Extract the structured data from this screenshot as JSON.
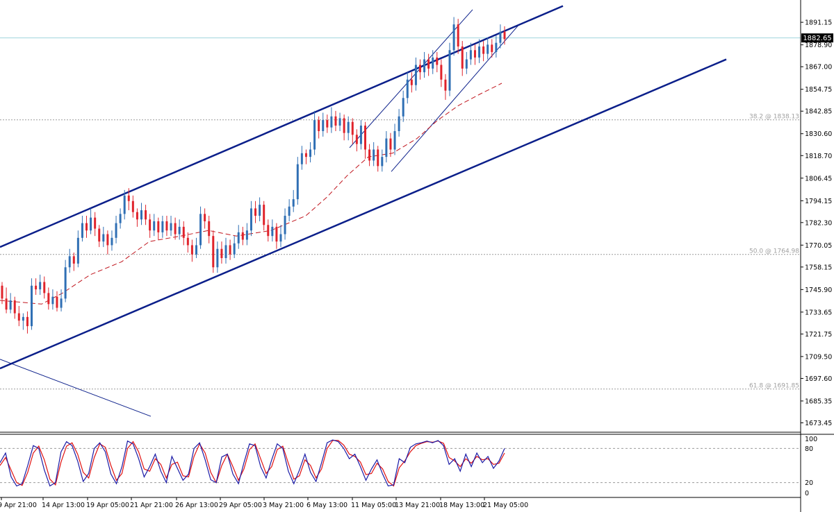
{
  "chart_data": {
    "type": "candlestick",
    "current_price": "1882.65",
    "price_axis": {
      "ylim": [
        1671,
        1901
      ],
      "ticks": [
        1891.15,
        1878.9,
        1867.0,
        1854.75,
        1842.85,
        1830.6,
        1818.7,
        1806.45,
        1794.15,
        1782.3,
        1770.05,
        1758.15,
        1745.9,
        1733.65,
        1721.75,
        1709.5,
        1697.6,
        1685.35,
        1673.45
      ],
      "tick_labels": [
        "1891.15",
        "1878.90",
        "1867.00",
        "1854.75",
        "1842.85",
        "1830.60",
        "1818.70",
        "1806.45",
        "1794.15",
        "1782.30",
        "1770.05",
        "1758.15",
        "1745.90",
        "1733.65",
        "1721.75",
        "1709.50",
        "1697.60",
        "1685.35",
        "1673.45"
      ]
    },
    "time_axis": {
      "labels": [
        "9 Apr 21:00",
        "14 Apr 13:00",
        "19 Apr 05:00",
        "21 Apr 21:00",
        "26 Apr 13:00",
        "29 Apr 05:00",
        "3 May 21:00",
        "6 May 13:00",
        "11 May 05:00",
        "13 May 21:00",
        "18 May 13:00",
        "21 May 05:00"
      ]
    },
    "fib_levels": [
      {
        "label": "38.2 @ 1838.13",
        "value": 1838.13
      },
      {
        "label": "50.0 @ 1764.98",
        "value": 1764.98
      },
      {
        "label": "61.8 @ 1691.85",
        "value": 1691.85
      }
    ],
    "channel_lines": [
      {
        "name": "upper-channel",
        "points": [
          [
            0,
            1769
          ],
          [
            810,
            1900
          ]
        ],
        "width": 2.5
      },
      {
        "name": "lower-channel",
        "points": [
          [
            0,
            1703
          ],
          [
            1045,
            1871
          ]
        ],
        "width": 2.5
      },
      {
        "name": "descending-line",
        "points": [
          [
            0,
            1708
          ],
          [
            217,
            1677
          ]
        ],
        "width": 1
      },
      {
        "name": "wedge-upper",
        "points": [
          [
            503,
            1823
          ],
          [
            680,
            1898
          ]
        ],
        "width": 1
      },
      {
        "name": "wedge-lower",
        "points": [
          [
            563,
            1810
          ],
          [
            747,
            1890
          ]
        ],
        "width": 1
      }
    ],
    "moving_average": [
      [
        0,
        1740
      ],
      [
        60,
        1738
      ],
      [
        90,
        1744
      ],
      [
        130,
        1754
      ],
      [
        175,
        1761
      ],
      [
        215,
        1772
      ],
      [
        260,
        1775
      ],
      [
        300,
        1778
      ],
      [
        340,
        1775
      ],
      [
        390,
        1778
      ],
      [
        440,
        1786
      ],
      [
        470,
        1796
      ],
      [
        500,
        1808
      ],
      [
        530,
        1818
      ],
      [
        565,
        1820
      ],
      [
        600,
        1828
      ],
      [
        630,
        1838
      ],
      [
        660,
        1846
      ],
      [
        690,
        1852
      ],
      [
        722,
        1858
      ]
    ],
    "candles": [
      [
        1748,
        1741,
        1750,
        1738
      ],
      [
        1741,
        1735,
        1747,
        1733
      ],
      [
        1735,
        1740,
        1744,
        1733
      ],
      [
        1740,
        1733,
        1742,
        1730
      ],
      [
        1733,
        1729,
        1737,
        1726
      ],
      [
        1729,
        1731,
        1733,
        1724
      ],
      [
        1731,
        1726,
        1734,
        1722
      ],
      [
        1726,
        1748,
        1752,
        1724
      ],
      [
        1748,
        1746,
        1752,
        1743
      ],
      [
        1746,
        1750,
        1754,
        1743
      ],
      [
        1750,
        1744,
        1753,
        1741
      ],
      [
        1744,
        1738,
        1747,
        1735
      ],
      [
        1738,
        1742,
        1746,
        1735
      ],
      [
        1742,
        1736,
        1745,
        1734
      ],
      [
        1736,
        1741,
        1746,
        1734
      ],
      [
        1741,
        1758,
        1762,
        1739
      ],
      [
        1758,
        1764,
        1768,
        1755
      ],
      [
        1764,
        1760,
        1766,
        1756
      ],
      [
        1760,
        1774,
        1778,
        1758
      ],
      [
        1774,
        1782,
        1786,
        1772
      ],
      [
        1782,
        1778,
        1786,
        1774
      ],
      [
        1778,
        1785,
        1790,
        1776
      ],
      [
        1785,
        1779,
        1788,
        1775
      ],
      [
        1779,
        1772,
        1781,
        1769
      ],
      [
        1772,
        1776,
        1780,
        1769
      ],
      [
        1776,
        1770,
        1778,
        1765
      ],
      [
        1770,
        1774,
        1778,
        1767
      ],
      [
        1774,
        1782,
        1786,
        1771
      ],
      [
        1782,
        1787,
        1790,
        1779
      ],
      [
        1787,
        1797,
        1800,
        1784
      ],
      [
        1797,
        1794,
        1801,
        1789
      ],
      [
        1794,
        1788,
        1797,
        1785
      ],
      [
        1788,
        1784,
        1790,
        1780
      ],
      [
        1784,
        1789,
        1793,
        1781
      ],
      [
        1789,
        1784,
        1792,
        1781
      ],
      [
        1784,
        1778,
        1787,
        1774
      ],
      [
        1778,
        1783,
        1787,
        1775
      ],
      [
        1783,
        1777,
        1785,
        1773
      ],
      [
        1777,
        1783,
        1786,
        1774
      ],
      [
        1783,
        1778,
        1786,
        1775
      ],
      [
        1778,
        1782,
        1786,
        1775
      ],
      [
        1782,
        1776,
        1785,
        1773
      ],
      [
        1776,
        1780,
        1784,
        1773
      ],
      [
        1780,
        1774,
        1783,
        1770
      ],
      [
        1774,
        1770,
        1777,
        1766
      ],
      [
        1770,
        1765,
        1773,
        1761
      ],
      [
        1765,
        1770,
        1774,
        1763
      ],
      [
        1770,
        1787,
        1791,
        1768
      ],
      [
        1787,
        1783,
        1790,
        1779
      ],
      [
        1783,
        1775,
        1786,
        1771
      ],
      [
        1775,
        1758,
        1778,
        1755
      ],
      [
        1758,
        1768,
        1772,
        1755
      ],
      [
        1768,
        1763,
        1772,
        1760
      ],
      [
        1763,
        1770,
        1774,
        1760
      ],
      [
        1770,
        1765,
        1773,
        1762
      ],
      [
        1765,
        1771,
        1775,
        1763
      ],
      [
        1771,
        1777,
        1781,
        1768
      ],
      [
        1777,
        1773,
        1780,
        1770
      ],
      [
        1773,
        1778,
        1782,
        1770
      ],
      [
        1778,
        1790,
        1794,
        1775
      ],
      [
        1790,
        1786,
        1794,
        1782
      ],
      [
        1786,
        1792,
        1796,
        1783
      ],
      [
        1792,
        1781,
        1794,
        1778
      ],
      [
        1781,
        1775,
        1784,
        1772
      ],
      [
        1775,
        1780,
        1784,
        1772
      ],
      [
        1780,
        1772,
        1782,
        1768
      ],
      [
        1772,
        1776,
        1781,
        1769
      ],
      [
        1776,
        1786,
        1790,
        1773
      ],
      [
        1786,
        1791,
        1795,
        1783
      ],
      [
        1791,
        1795,
        1800,
        1788
      ],
      [
        1795,
        1814,
        1818,
        1792
      ],
      [
        1814,
        1820,
        1824,
        1811
      ],
      [
        1820,
        1818,
        1822,
        1814
      ],
      [
        1818,
        1822,
        1826,
        1815
      ],
      [
        1822,
        1838,
        1843,
        1819
      ],
      [
        1838,
        1832,
        1840,
        1828
      ],
      [
        1832,
        1838,
        1842,
        1829
      ],
      [
        1838,
        1834,
        1841,
        1831
      ],
      [
        1834,
        1840,
        1845,
        1831
      ],
      [
        1840,
        1835,
        1843,
        1832
      ],
      [
        1835,
        1839,
        1842,
        1832
      ],
      [
        1839,
        1831,
        1841,
        1827
      ],
      [
        1831,
        1837,
        1840,
        1827
      ],
      [
        1837,
        1830,
        1839,
        1825
      ],
      [
        1830,
        1825,
        1833,
        1821
      ],
      [
        1825,
        1835,
        1838,
        1822
      ],
      [
        1835,
        1822,
        1837,
        1817
      ],
      [
        1822,
        1816,
        1825,
        1813
      ],
      [
        1816,
        1822,
        1826,
        1813
      ],
      [
        1822,
        1813,
        1824,
        1810
      ],
      [
        1813,
        1818,
        1822,
        1810
      ],
      [
        1818,
        1828,
        1832,
        1815
      ],
      [
        1828,
        1822,
        1831,
        1818
      ],
      [
        1822,
        1832,
        1836,
        1819
      ],
      [
        1832,
        1840,
        1844,
        1829
      ],
      [
        1840,
        1850,
        1854,
        1837
      ],
      [
        1850,
        1860,
        1864,
        1847
      ],
      [
        1860,
        1857,
        1864,
        1853
      ],
      [
        1857,
        1868,
        1872,
        1854
      ],
      [
        1868,
        1864,
        1871,
        1860
      ],
      [
        1864,
        1871,
        1875,
        1861
      ],
      [
        1871,
        1866,
        1874,
        1862
      ],
      [
        1866,
        1872,
        1876,
        1863
      ],
      [
        1872,
        1868,
        1875,
        1864
      ],
      [
        1868,
        1860,
        1871,
        1856
      ],
      [
        1860,
        1854,
        1863,
        1849
      ],
      [
        1854,
        1876,
        1880,
        1851
      ],
      [
        1876,
        1890,
        1894,
        1873
      ],
      [
        1890,
        1878,
        1893,
        1874
      ],
      [
        1878,
        1866,
        1881,
        1862
      ],
      [
        1866,
        1871,
        1875,
        1863
      ],
      [
        1871,
        1876,
        1880,
        1868
      ],
      [
        1876,
        1872,
        1879,
        1868
      ],
      [
        1872,
        1878,
        1882,
        1869
      ],
      [
        1878,
        1874,
        1881,
        1870
      ],
      [
        1874,
        1879,
        1883,
        1871
      ],
      [
        1879,
        1875,
        1882,
        1872
      ],
      [
        1875,
        1880,
        1884,
        1872
      ],
      [
        1880,
        1886,
        1890,
        1877
      ],
      [
        1886,
        1882,
        1889,
        1879
      ]
    ],
    "stochastic": {
      "ylim": [
        0,
        100
      ],
      "tick_labels": [
        "100",
        "80",
        "20",
        "0"
      ],
      "levels": [
        80,
        20
      ],
      "main": [
        55,
        72,
        30,
        14,
        18,
        50,
        85,
        80,
        42,
        14,
        20,
        74,
        92,
        85,
        58,
        22,
        36,
        80,
        90,
        74,
        35,
        18,
        48,
        93,
        88,
        62,
        30,
        48,
        70,
        40,
        20,
        66,
        45,
        24,
        35,
        80,
        90,
        60,
        25,
        20,
        65,
        70,
        35,
        18,
        55,
        88,
        85,
        48,
        28,
        60,
        88,
        80,
        40,
        18,
        42,
        70,
        38,
        22,
        55,
        90,
        95,
        92,
        80,
        62,
        70,
        48,
        24,
        44,
        60,
        35,
        14,
        16,
        62,
        55,
        82,
        88,
        90,
        93,
        90,
        94,
        85,
        52,
        62,
        40,
        70,
        48,
        72,
        55,
        66,
        45,
        58,
        80
      ],
      "signal": [
        50,
        64,
        42,
        20,
        15,
        38,
        72,
        84,
        60,
        26,
        16,
        56,
        84,
        90,
        70,
        38,
        28,
        64,
        88,
        82,
        50,
        24,
        36,
        80,
        92,
        74,
        44,
        40,
        62,
        52,
        28,
        52,
        56,
        32,
        30,
        66,
        88,
        72,
        38,
        20,
        50,
        70,
        48,
        24,
        44,
        78,
        88,
        62,
        36,
        48,
        78,
        84,
        54,
        26,
        32,
        60,
        50,
        28,
        44,
        80,
        94,
        94,
        86,
        70,
        66,
        56,
        34,
        36,
        54,
        44,
        22,
        14,
        46,
        58,
        74,
        85,
        89,
        92,
        91,
        93,
        89,
        64,
        58,
        48,
        62,
        54,
        66,
        60,
        62,
        52,
        54,
        72
      ]
    }
  }
}
